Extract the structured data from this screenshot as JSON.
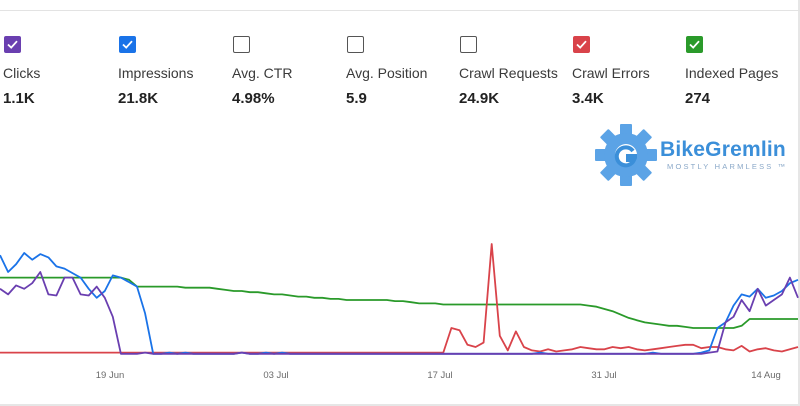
{
  "metrics": [
    {
      "label": "Clicks",
      "value": "1.1K",
      "checked": true,
      "color": "#6a3fb0"
    },
    {
      "label": "Impressions",
      "value": "21.8K",
      "checked": true,
      "color": "#1a73e8"
    },
    {
      "label": "Avg. CTR",
      "value": "4.98%",
      "checked": false,
      "color": "#555555"
    },
    {
      "label": "Avg. Position",
      "value": "5.9",
      "checked": false,
      "color": "#555555"
    },
    {
      "label": "Crawl Requests",
      "value": "24.9K",
      "checked": false,
      "color": "#555555"
    },
    {
      "label": "Crawl Errors",
      "value": "3.4K",
      "checked": true,
      "color": "#d9434a"
    },
    {
      "label": "Indexed Pages",
      "value": "274",
      "checked": true,
      "color": "#2a9a2a"
    }
  ],
  "logo": {
    "name": "BikeGremlin",
    "tagline": "MOSTLY HARMLESS ™",
    "icon": "gear-g-logo-icon"
  },
  "chart_data": {
    "type": "line",
    "x_ticks": [
      "19 Jun",
      "03 Jul",
      "17 Jul",
      "31 Jul",
      "14 Aug"
    ],
    "y_scale": "independent-per-series (no axis shown)",
    "grid": false,
    "legend": "checkbox row above chart",
    "series": [
      {
        "name": "Impressions",
        "color": "#1a73e8",
        "values": [
          90,
          75,
          82,
          92,
          86,
          91,
          88,
          80,
          78,
          74,
          70,
          60,
          52,
          58,
          72,
          70,
          66,
          62,
          38,
          2,
          2,
          3,
          2,
          3,
          2,
          2,
          2,
          2,
          2,
          2,
          3,
          2,
          2,
          3,
          2,
          3,
          2,
          2,
          2,
          2,
          2,
          2,
          2,
          2,
          2,
          2,
          2,
          2,
          2,
          2,
          2,
          2,
          2,
          2,
          2,
          2,
          2,
          2,
          2,
          2,
          2,
          2,
          2,
          2,
          2,
          2,
          2,
          3,
          2,
          2,
          2,
          2,
          2,
          2,
          2,
          2,
          2,
          2,
          2,
          2,
          2,
          3,
          2,
          2,
          2,
          2,
          2,
          3,
          5,
          25,
          30,
          45,
          55,
          53,
          60,
          52,
          54,
          58,
          65,
          68
        ]
      },
      {
        "name": "Clicks",
        "color": "#6a3fb0",
        "values": [
          60,
          55,
          63,
          60,
          65,
          75,
          55,
          54,
          70,
          70,
          55,
          54,
          62,
          52,
          35,
          2,
          2,
          2,
          3,
          2,
          2,
          2,
          2,
          2,
          2,
          2,
          2,
          2,
          2,
          2,
          3,
          2,
          2,
          2,
          2,
          2,
          2,
          2,
          2,
          2,
          2,
          2,
          2,
          2,
          2,
          2,
          2,
          2,
          2,
          2,
          2,
          2,
          2,
          2,
          2,
          2,
          2,
          2,
          2,
          2,
          2,
          2,
          2,
          2,
          2,
          2,
          2,
          2,
          2,
          2,
          2,
          2,
          2,
          2,
          2,
          2,
          2,
          2,
          2,
          2,
          2,
          2,
          2,
          2,
          2,
          2,
          2,
          2,
          3,
          4,
          30,
          35,
          50,
          40,
          60,
          45,
          50,
          55,
          70,
          52
        ]
      },
      {
        "name": "Crawl Errors",
        "color": "#d9434a",
        "values": [
          3,
          3,
          3,
          3,
          3,
          3,
          3,
          3,
          3,
          3,
          3,
          3,
          3,
          3,
          3,
          3,
          3,
          3,
          3,
          3,
          3,
          3,
          3,
          3,
          3,
          3,
          3,
          3,
          3,
          3,
          3,
          3,
          3,
          3,
          3,
          3,
          3,
          3,
          3,
          3,
          3,
          3,
          3,
          3,
          3,
          3,
          3,
          3,
          3,
          3,
          3,
          3,
          3,
          3,
          3,
          3,
          25,
          23,
          10,
          8,
          12,
          100,
          18,
          5,
          22,
          8,
          5,
          4,
          6,
          4,
          5,
          6,
          8,
          7,
          6,
          6,
          8,
          7,
          8,
          6,
          5,
          6,
          7,
          8,
          9,
          10,
          10,
          7,
          8,
          8,
          6,
          5,
          9,
          4,
          6,
          7,
          5,
          4,
          6,
          8
        ]
      },
      {
        "name": "Indexed Pages",
        "color": "#2a9a2a",
        "values": [
          70,
          70,
          70,
          70,
          70,
          70,
          70,
          70,
          70,
          70,
          70,
          70,
          70,
          70,
          70,
          70,
          68,
          62,
          62,
          62,
          62,
          62,
          62,
          61,
          61,
          61,
          61,
          60,
          59,
          58,
          58,
          57,
          57,
          56,
          55,
          55,
          54,
          53,
          53,
          52,
          52,
          51,
          51,
          50,
          50,
          50,
          50,
          50,
          50,
          49,
          49,
          48,
          47,
          47,
          47,
          46,
          46,
          46,
          46,
          46,
          46,
          46,
          46,
          46,
          46,
          46,
          46,
          46,
          46,
          46,
          46,
          46,
          46,
          45,
          44,
          42,
          40,
          37,
          34,
          32,
          30,
          29,
          28,
          27,
          27,
          26,
          25,
          25,
          25,
          25,
          25,
          25,
          27,
          33,
          33,
          33,
          33,
          33,
          33,
          33
        ]
      }
    ]
  }
}
